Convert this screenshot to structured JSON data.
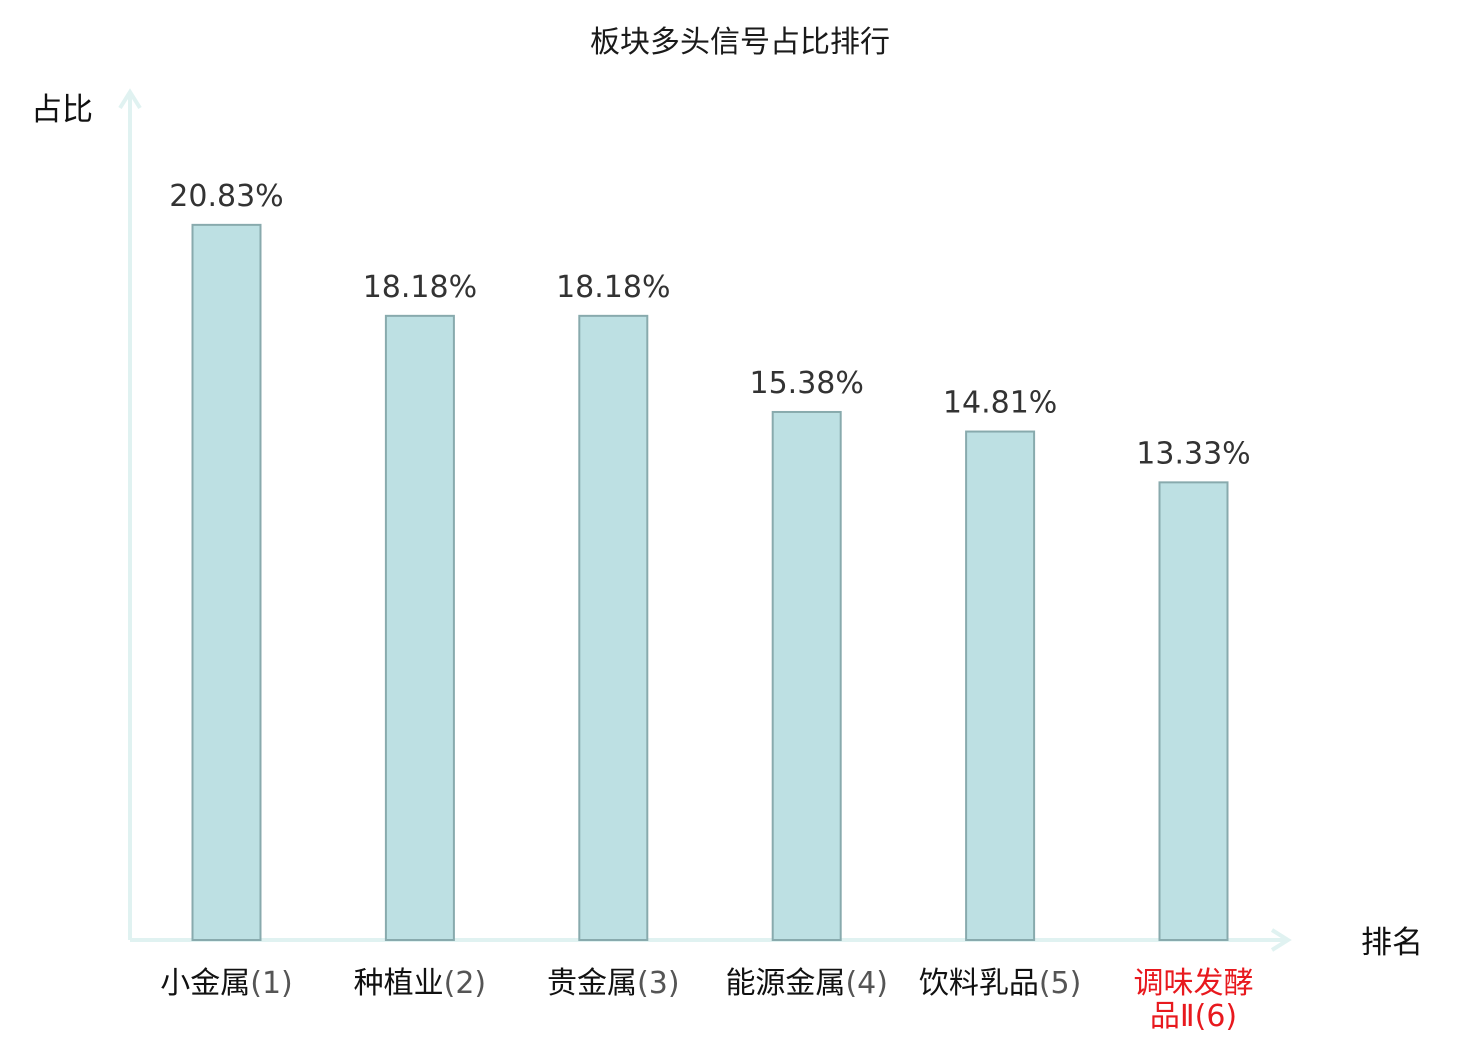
{
  "chart_data": {
    "type": "bar",
    "title": "板块多头信号占比排行",
    "ylabel": "占比",
    "xlabel": "排名",
    "categories": [
      {
        "name": "小金属",
        "rank": "(1)",
        "highlight": false
      },
      {
        "name": "种植业",
        "rank": "(2)",
        "highlight": false
      },
      {
        "name": "贵金属",
        "rank": "(3)",
        "highlight": false
      },
      {
        "name": "能源金属",
        "rank": "(4)",
        "highlight": false
      },
      {
        "name": "饮料乳品",
        "rank": "(5)",
        "highlight": false
      },
      {
        "name": "调味发酵品Ⅱ",
        "line1": "调味发酵",
        "line2": "品Ⅱ",
        "rank": "(6)",
        "highlight": true
      }
    ],
    "values": [
      20.83,
      18.18,
      18.18,
      15.38,
      14.81,
      13.33
    ],
    "value_labels": [
      "20.83%",
      "18.18%",
      "18.18%",
      "15.38%",
      "14.81%",
      "13.33%"
    ],
    "ylim": [
      0,
      24.7
    ],
    "grid": false,
    "legend": "none",
    "colors": {
      "bar_fill": "#bde0e3",
      "bar_stroke": "#88aaad",
      "axis": "#e0f2f1",
      "highlight_text": "#e8191e",
      "normal_text": "#111111"
    }
  }
}
